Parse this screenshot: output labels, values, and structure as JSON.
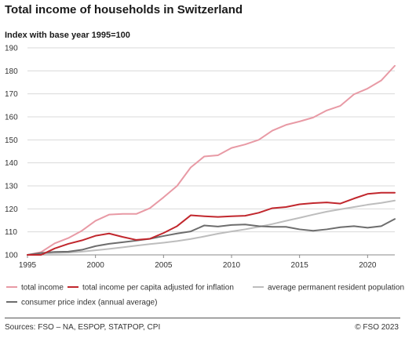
{
  "title": "Total income of households in Switzerland",
  "subtitle": "Index with base year 1995=100",
  "source": "Sources: FSO – NA, ESPOP, STATPOP, CPI",
  "copyright": "© FSO 2023",
  "chart_data": {
    "type": "line",
    "title": "Total income of households in Switzerland",
    "ylabel": "Index with base year 1995=100",
    "xlabel": "",
    "xlim": [
      1995,
      2022
    ],
    "ylim": [
      100,
      190
    ],
    "x_ticks": [
      1995,
      2000,
      2005,
      2010,
      2015,
      2020
    ],
    "y_ticks": [
      100,
      110,
      120,
      130,
      140,
      150,
      160,
      170,
      180,
      190
    ],
    "grid": "horizontal",
    "legend_position": "bottom",
    "x": [
      1995,
      1996,
      1997,
      1998,
      1999,
      2000,
      2001,
      2002,
      2003,
      2004,
      2005,
      2006,
      2007,
      2008,
      2009,
      2010,
      2011,
      2012,
      2013,
      2014,
      2015,
      2016,
      2017,
      2018,
      2019,
      2020,
      2021,
      2022
    ],
    "series": [
      {
        "name": "total income",
        "color": "#e89aa5",
        "values": [
          100,
          101.2,
          105,
          107.3,
          110.5,
          114.8,
          117.5,
          117.8,
          117.8,
          120.3,
          125,
          130,
          138,
          142.8,
          143.3,
          146.5,
          148,
          150,
          154,
          156.5,
          158,
          159.7,
          162.8,
          164.8,
          169.8,
          172.3,
          175.8,
          182.2
        ]
      },
      {
        "name": "total income per capita adjusted for inflation",
        "color": "#c1272d",
        "values": [
          100,
          100,
          102.8,
          104.8,
          106.3,
          108.3,
          109.3,
          107.8,
          106.5,
          107,
          109.5,
          112.5,
          117.2,
          116.8,
          116.5,
          116.8,
          117,
          118.3,
          120.3,
          120.8,
          122,
          122.5,
          122.8,
          122.3,
          124.5,
          126.5,
          127,
          127
        ]
      },
      {
        "name": "average permanent resident population",
        "color": "#bdbdbd",
        "values": [
          100,
          100.6,
          100.8,
          101,
          101.4,
          102,
          102.6,
          103.3,
          104,
          104.7,
          105.3,
          106,
          106.9,
          108,
          109.2,
          110.2,
          111.1,
          112.2,
          113.4,
          114.8,
          116.1,
          117.5,
          118.8,
          119.8,
          120.8,
          121.8,
          122.6,
          123.6
        ]
      },
      {
        "name": "consumer price index (annual average)",
        "color": "#6d6d6d",
        "values": [
          100,
          100.8,
          101.3,
          101.4,
          102.2,
          103.8,
          104.8,
          105.5,
          106.2,
          107,
          108.2,
          109.3,
          110.2,
          112.8,
          112.3,
          113,
          113.2,
          112.5,
          112.2,
          112.2,
          111.1,
          110.5,
          111.1,
          112,
          112.5,
          111.8,
          112.5,
          115.6
        ]
      }
    ]
  }
}
